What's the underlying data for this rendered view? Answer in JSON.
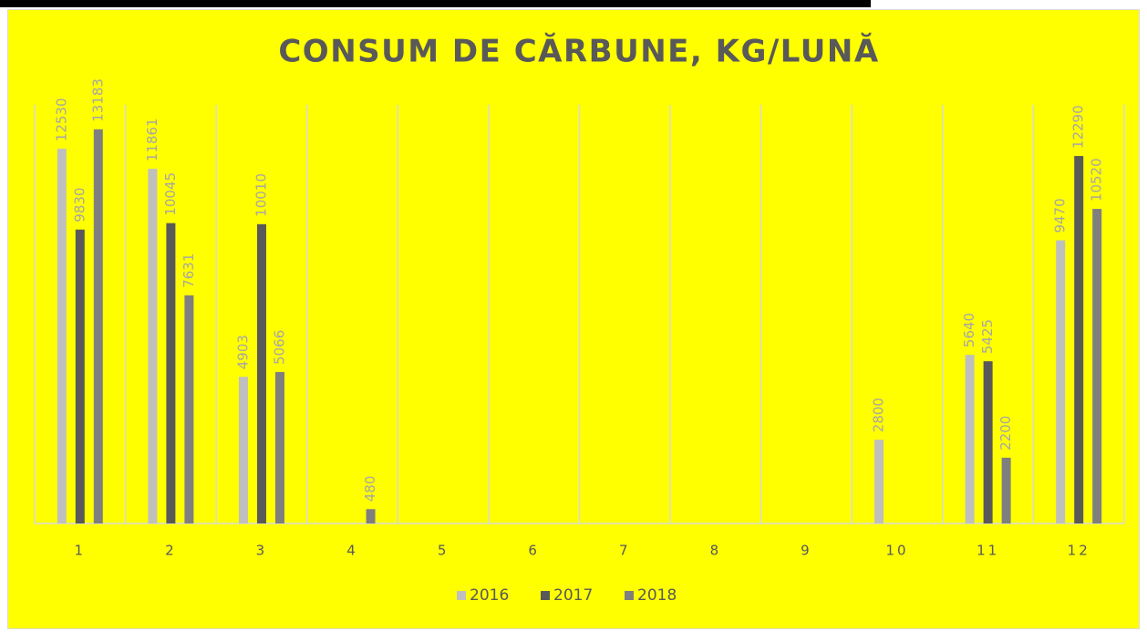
{
  "chart_data": {
    "type": "bar",
    "title": "CONSUM DE CĂRBUNE, KG/LUNĂ",
    "categories": [
      "1",
      "2",
      "3",
      "4",
      "5",
      "6",
      "7",
      "8",
      "9",
      "10",
      "11",
      "12"
    ],
    "series": [
      {
        "name": "2016",
        "color": "#bfbfbf",
        "values": [
          12530,
          11861,
          4903,
          null,
          null,
          null,
          null,
          null,
          null,
          2800,
          5640,
          9470
        ]
      },
      {
        "name": "2017",
        "color": "#595959",
        "values": [
          9830,
          10045,
          10010,
          null,
          null,
          null,
          null,
          null,
          null,
          null,
          5425,
          12290
        ]
      },
      {
        "name": "2018",
        "color": "#7f7f7f",
        "values": [
          13183,
          7631,
          5066,
          480,
          null,
          null,
          null,
          null,
          null,
          null,
          2200,
          10520
        ]
      }
    ],
    "ylim": [
      0,
      14000
    ],
    "grid": true,
    "legend": "bottom"
  }
}
